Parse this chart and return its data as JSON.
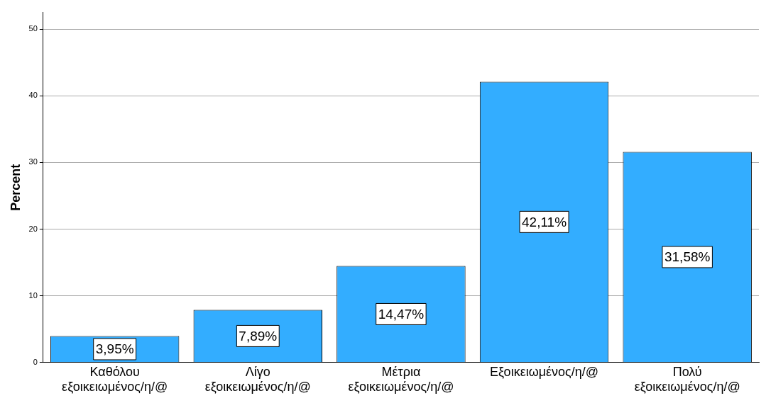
{
  "chart_data": {
    "type": "bar",
    "ylabel": "Percent",
    "categories": [
      "Καθόλου εξοικειωμένος/η/@",
      "Λίγο εξοικειωμένος/η/@",
      "Μέτρια εξοικειωμένος/η/@",
      "Εξοικειωμένος/η/@",
      "Πολύ εξοικειωμένος/η/@"
    ],
    "values": [
      3.95,
      7.89,
      14.47,
      42.11,
      31.58
    ],
    "value_labels": [
      "3,95%",
      "7,89%",
      "14,47%",
      "42,11%",
      "31,58%"
    ],
    "color": "#33adff",
    "ylim": [
      0,
      52.5
    ],
    "yticks": [
      0,
      10,
      20,
      30,
      40,
      50
    ],
    "grid": "y",
    "legend": false
  }
}
